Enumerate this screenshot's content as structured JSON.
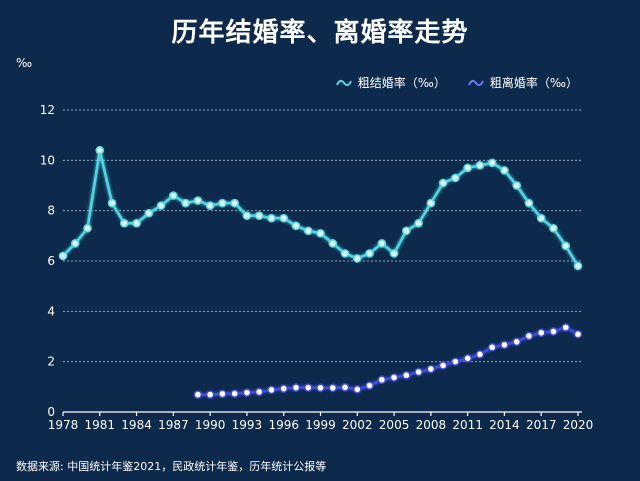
{
  "title": "历年结婚率、离婚率走势",
  "unit": "‰",
  "source": "数据来源: 中国统计年鉴2021，民政统计年鉴，历年统计公报等",
  "colors": {
    "background": "#0d2a4c",
    "marriage": "#4fd6e0",
    "divorce": "#3f4de0",
    "text": "#ffffff"
  },
  "chart_data": {
    "type": "line",
    "title": "历年结婚率、离婚率走势",
    "ylabel": "‰",
    "ylim": [
      0,
      12
    ],
    "yticks": [
      0,
      2,
      4,
      6,
      8,
      10,
      12
    ],
    "xlim": [
      1978,
      2020
    ],
    "xticks": [
      1978,
      1981,
      1984,
      1987,
      1990,
      1993,
      1996,
      1999,
      2002,
      2005,
      2008,
      2011,
      2014,
      2017,
      2020
    ],
    "grid": true,
    "legend_position": "top-right",
    "series": [
      {
        "name": "粗结婚率（‰）",
        "x": [
          1978,
          1979,
          1980,
          1981,
          1982,
          1983,
          1984,
          1985,
          1986,
          1987,
          1988,
          1989,
          1990,
          1991,
          1992,
          1993,
          1994,
          1995,
          1996,
          1997,
          1998,
          1999,
          2000,
          2001,
          2002,
          2003,
          2004,
          2005,
          2006,
          2007,
          2008,
          2009,
          2010,
          2011,
          2012,
          2013,
          2014,
          2015,
          2016,
          2017,
          2018,
          2019,
          2020
        ],
        "values": [
          6.2,
          6.7,
          7.3,
          10.4,
          8.3,
          7.5,
          7.5,
          7.9,
          8.2,
          8.6,
          8.3,
          8.4,
          8.2,
          8.3,
          8.3,
          7.8,
          7.8,
          7.7,
          7.7,
          7.4,
          7.2,
          7.1,
          6.7,
          6.3,
          6.1,
          6.3,
          6.7,
          6.3,
          7.2,
          7.5,
          8.3,
          9.1,
          9.3,
          9.7,
          9.8,
          9.9,
          9.6,
          9.0,
          8.3,
          7.7,
          7.3,
          6.6,
          5.8
        ]
      },
      {
        "name": "粗离婚率（‰）",
        "x": [
          1989,
          1990,
          1991,
          1992,
          1993,
          1994,
          1995,
          1996,
          1997,
          1998,
          1999,
          2000,
          2001,
          2002,
          2003,
          2004,
          2005,
          2006,
          2007,
          2008,
          2009,
          2010,
          2011,
          2012,
          2013,
          2014,
          2015,
          2016,
          2017,
          2018,
          2019,
          2020
        ],
        "values": [
          0.69,
          0.69,
          0.72,
          0.73,
          0.77,
          0.8,
          0.88,
          0.93,
          0.97,
          0.97,
          0.96,
          0.96,
          0.98,
          0.9,
          1.05,
          1.28,
          1.37,
          1.46,
          1.59,
          1.71,
          1.85,
          2.0,
          2.13,
          2.29,
          2.57,
          2.67,
          2.79,
          3.02,
          3.15,
          3.2,
          3.36,
          3.09
        ]
      }
    ]
  }
}
